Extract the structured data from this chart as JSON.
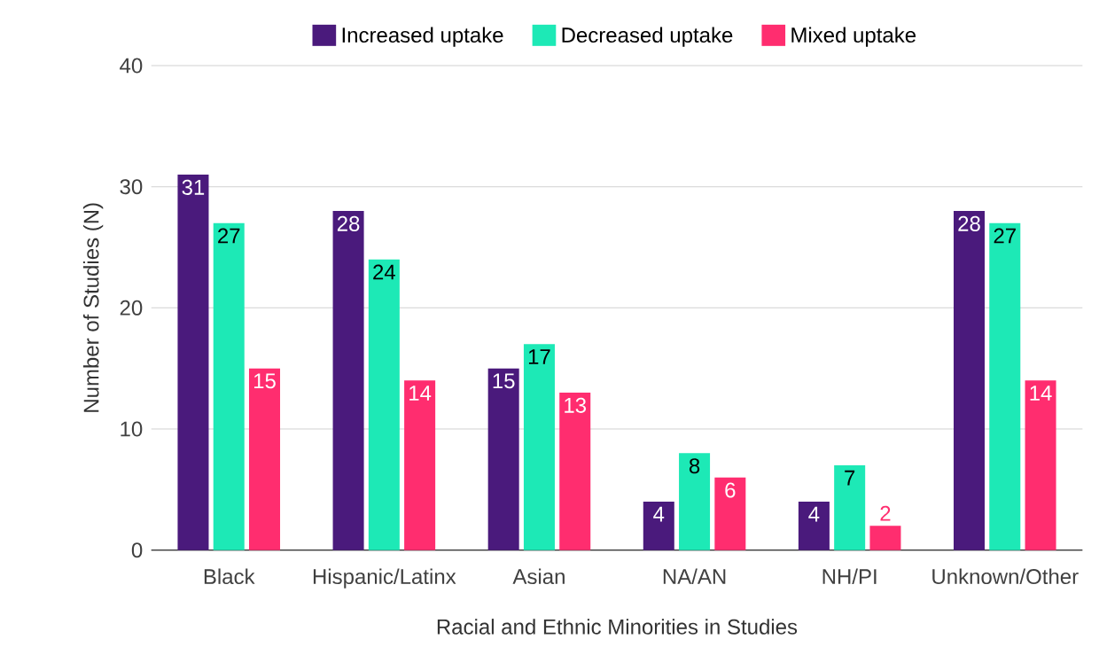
{
  "chart_data": {
    "type": "bar",
    "xlabel": "Racial and Ethnic Minorities in Studies",
    "ylabel": "Number of Studies (N)",
    "categories": [
      "Black",
      "Hispanic/Latinx",
      "Asian",
      "NA/AN",
      "NH/PI",
      "Unknown/Other"
    ],
    "series": [
      {
        "name": "Increased uptake",
        "color": "#4a1a7c",
        "values": [
          31,
          28,
          15,
          4,
          4,
          28
        ]
      },
      {
        "name": "Decreased uptake",
        "color": "#1de9b6",
        "values": [
          27,
          24,
          17,
          8,
          7,
          27
        ]
      },
      {
        "name": "Mixed uptake",
        "color": "#ff2d6f",
        "values": [
          15,
          14,
          13,
          6,
          2,
          14
        ]
      }
    ],
    "ylim": [
      0,
      40
    ],
    "yticks": [
      0,
      10,
      20,
      30,
      40
    ],
    "grid": "y",
    "legend": "top",
    "data_labels": true
  }
}
